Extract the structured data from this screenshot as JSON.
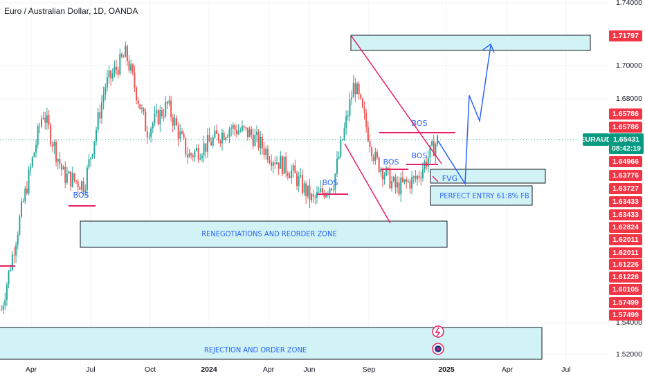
{
  "header": {
    "title": "Euro / Australian Dollar, 1D, OANDA"
  },
  "colors": {
    "up": "#26a69a",
    "down": "#ef5350",
    "zone_fill": "#d1f3f5",
    "annot_red": "#e91e63",
    "annot_blue": "#2962ff",
    "price_line": "#089981",
    "tag_red": "#f23645",
    "tag_green": "#089981"
  },
  "chart_data": {
    "type": "candlestick",
    "symbol": "EURAUD",
    "timeframe": "1D",
    "x_axis_labels": [
      "Apr",
      "Jul",
      "Oct",
      "2024",
      "Apr",
      "Jun",
      "Sep",
      "2025",
      "Apr",
      "Jul"
    ],
    "y_axis_ticks": [
      "1.74000",
      "1.70000",
      "1.68000",
      "1.54000",
      "1.52000"
    ],
    "ylim": [
      1.515,
      1.745
    ],
    "current_price": "1.65431",
    "countdown": "08:42:19",
    "series_close_path": [
      {
        "x": "Mar 2023",
        "y": 1.548
      },
      {
        "x": "Apr 2023",
        "y": 1.612
      },
      {
        "x": "May 2023",
        "y": 1.672
      },
      {
        "x": "Jun 2023",
        "y": 1.632
      },
      {
        "x": "Jul 2023",
        "y": 1.626
      },
      {
        "x": "Aug 2023",
        "y": 1.688
      },
      {
        "x": "Sep 2023",
        "y": 1.708
      },
      {
        "x": "Oct 2023",
        "y": 1.66
      },
      {
        "x": "Nov 2023",
        "y": 1.676
      },
      {
        "x": "Dec 2023",
        "y": 1.644
      },
      {
        "x": "Jan 2024",
        "y": 1.652
      },
      {
        "x": "Feb 2024",
        "y": 1.662
      },
      {
        "x": "Mar 2024",
        "y": 1.658
      },
      {
        "x": "Apr 2024",
        "y": 1.644
      },
      {
        "x": "May 2024",
        "y": 1.634
      },
      {
        "x": "Jun 2024",
        "y": 1.616
      },
      {
        "x": "Jul 2024",
        "y": 1.628
      },
      {
        "x": "Aug 2024",
        "y": 1.69
      },
      {
        "x": "Sep 2024",
        "y": 1.642
      },
      {
        "x": "Oct 2024",
        "y": 1.624
      },
      {
        "x": "Nov 2024",
        "y": 1.63
      },
      {
        "x": "Dec 2024",
        "y": 1.654
      }
    ],
    "right_axis_tags": [
      {
        "label": "1.71797",
        "color": "red"
      },
      {
        "label": "1.65786",
        "color": "red"
      },
      {
        "label": "1.65786",
        "color": "red"
      },
      {
        "label": "1.64966",
        "color": "red"
      },
      {
        "label": "1.63776",
        "color": "red"
      },
      {
        "label": "1.63727",
        "color": "red"
      },
      {
        "label": "1.63433",
        "color": "red"
      },
      {
        "label": "1.63433",
        "color": "red"
      },
      {
        "label": "1.62824",
        "color": "red"
      },
      {
        "label": "1.62011",
        "color": "red"
      },
      {
        "label": "1.62011",
        "color": "red"
      },
      {
        "label": "1.61226",
        "color": "red"
      },
      {
        "label": "1.61226",
        "color": "red"
      },
      {
        "label": "1.60105",
        "color": "red"
      },
      {
        "label": "1.57499",
        "color": "red"
      },
      {
        "label": "1.57499",
        "color": "red"
      }
    ],
    "zones": [
      {
        "label": "RENEGOTIATIONS AND REORDER ZONE"
      },
      {
        "label": "REJECTION AND ORDER ZONE"
      },
      {
        "label": ""
      },
      {
        "label": ""
      },
      {
        "label": "PERFECT ENTRY 61:8% FB"
      }
    ],
    "annotations": [
      "BOS",
      "BOS",
      "BOS",
      "BOS",
      "BOS",
      "FVG"
    ],
    "price_tag_label": "EURAUD"
  }
}
